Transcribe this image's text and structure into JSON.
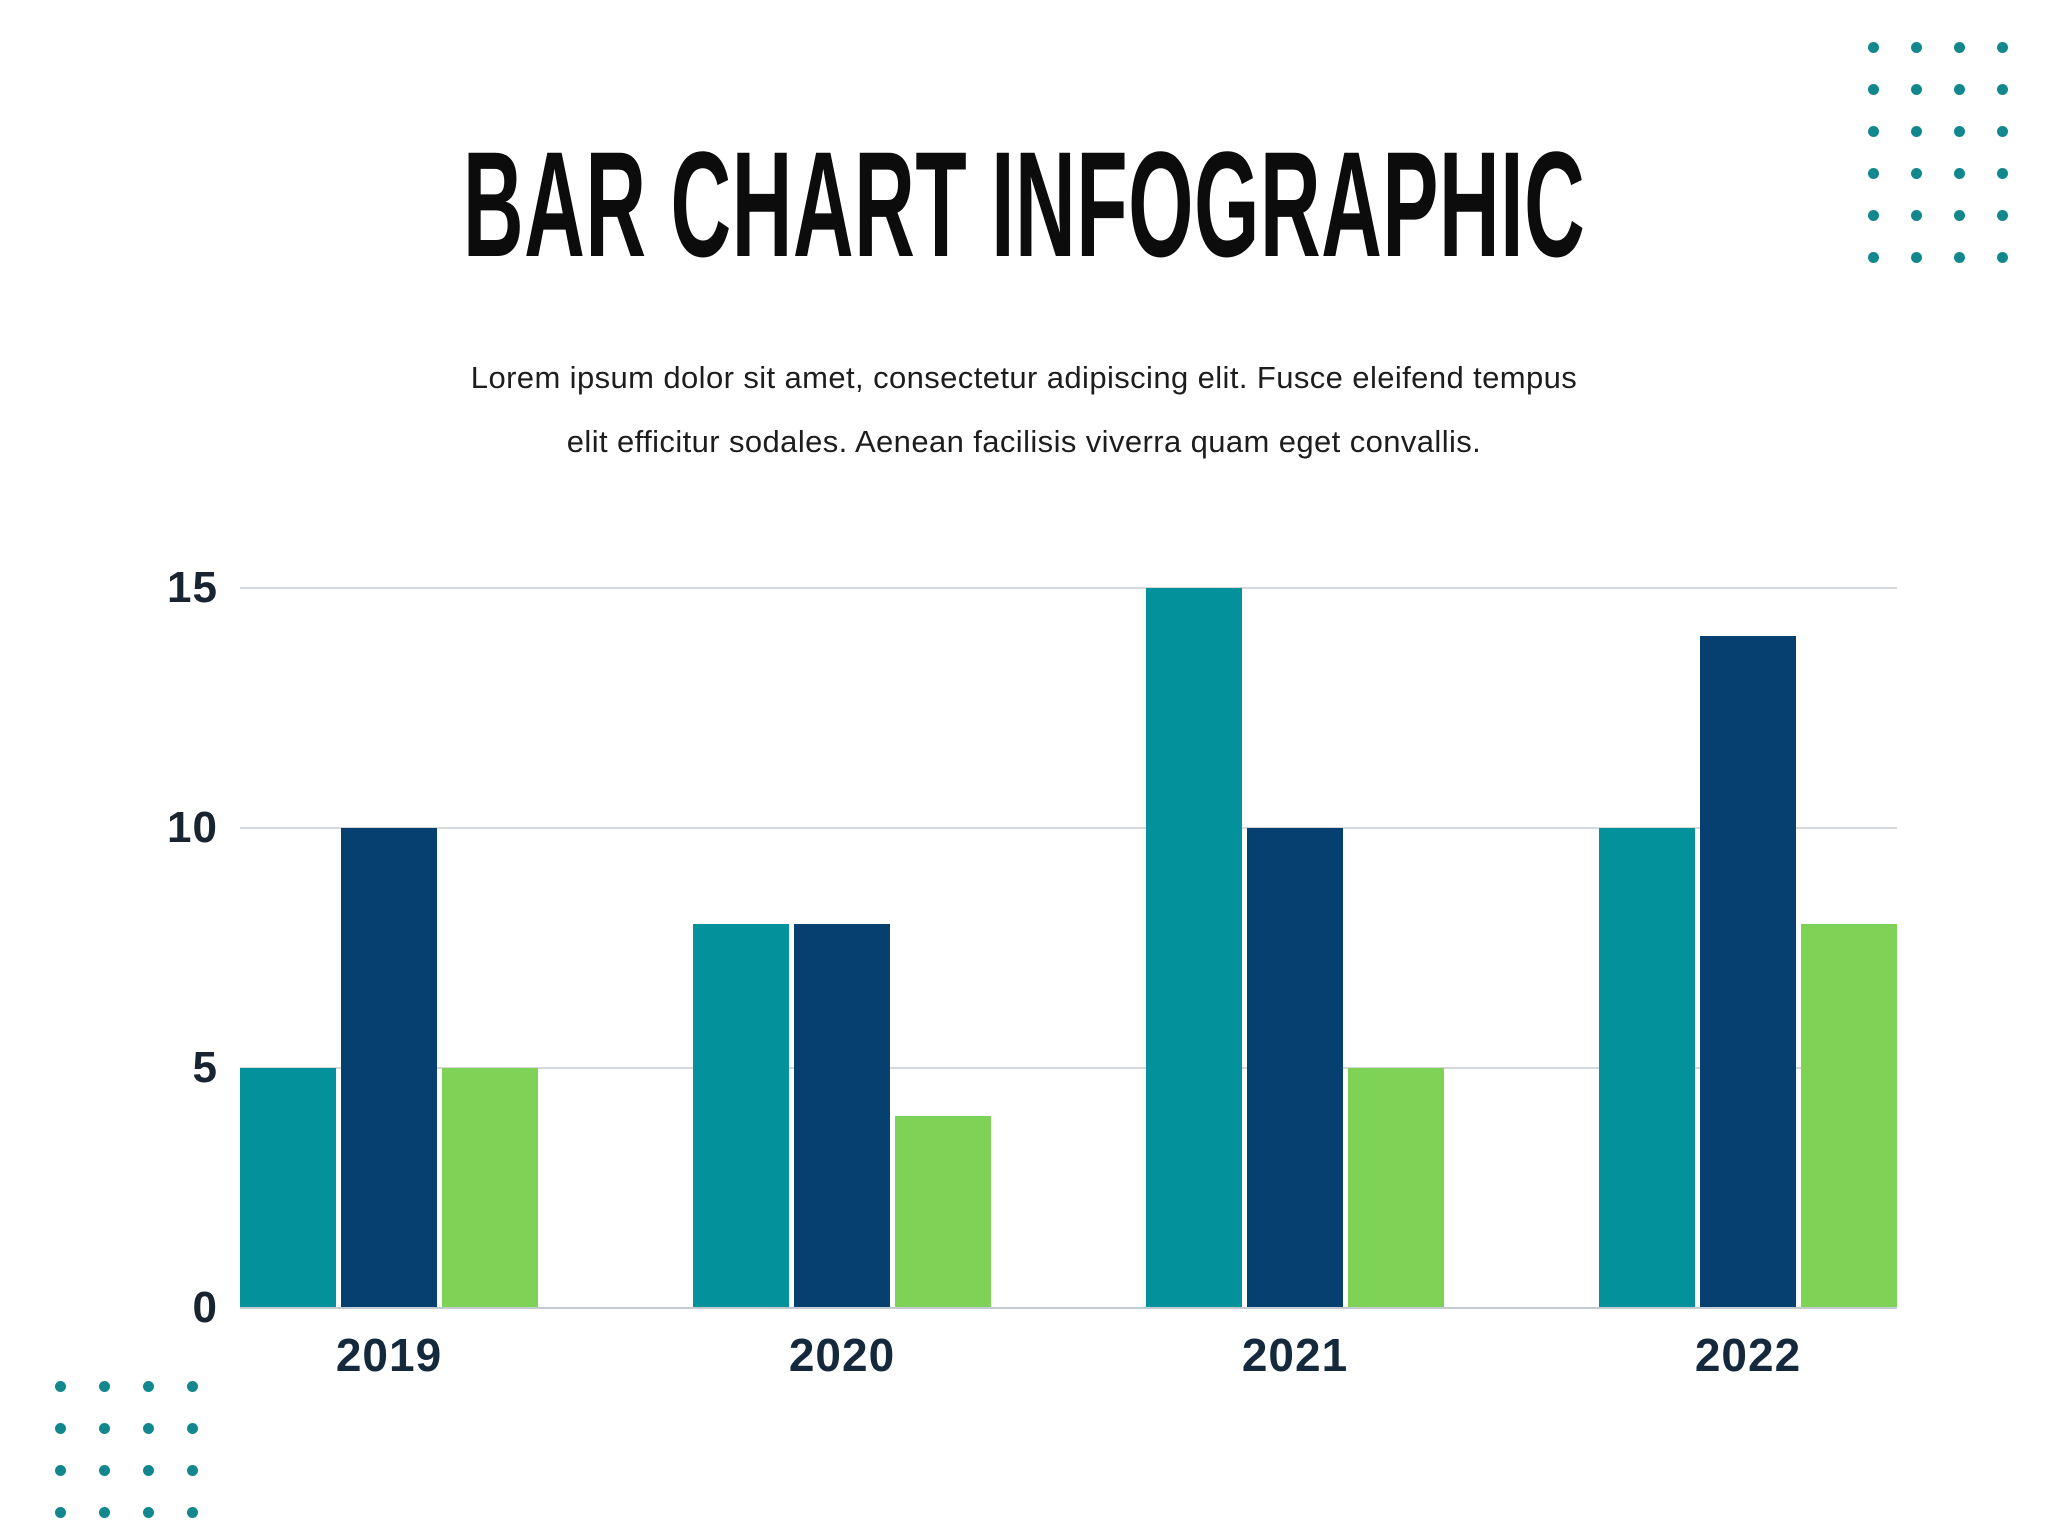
{
  "header": {
    "title": "BAR CHART INFOGRAPHIC",
    "subtitle_line1": "Lorem ipsum dolor sit amet, consectetur adipiscing elit. Fusce eleifend tempus",
    "subtitle_line2": "elit efficitur sodales. Aenean facilisis viverra quam eget convallis."
  },
  "chart_data": {
    "type": "bar",
    "categories": [
      "2019",
      "2020",
      "2021",
      "2022"
    ],
    "series": [
      {
        "name": "series-teal",
        "color": "#03929b",
        "values": [
          5,
          8,
          15,
          10
        ]
      },
      {
        "name": "series-navy",
        "color": "#054071",
        "values": [
          10,
          8,
          10,
          14
        ]
      },
      {
        "name": "series-green",
        "color": "#7ed356",
        "values": [
          5,
          4,
          5,
          8
        ]
      }
    ],
    "ylim": [
      0,
      15
    ],
    "yticks": [
      0,
      5,
      10,
      15
    ],
    "grid": true,
    "legend": "none"
  },
  "colors": {
    "gridline": "#d5d8db",
    "baseline": "#c2cbd0",
    "axis_label": "#14293c",
    "dot": "#12888e",
    "title": "#0c0c0c",
    "subtitle": "#1d1d1d"
  },
  "decorations": {
    "top_right_dots": {
      "rows": 6,
      "cols": 4
    },
    "bottom_left_dots": {
      "rows": 4,
      "cols": 4
    }
  }
}
